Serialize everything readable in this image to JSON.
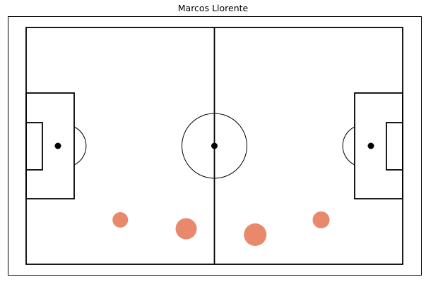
{
  "chart_data": {
    "type": "scatter",
    "title": "Marcos Llorente",
    "x_range": [
      0,
      120
    ],
    "y_range": [
      0,
      80
    ],
    "points": [
      {
        "x": 30,
        "y": 65,
        "size": 0.35
      },
      {
        "x": 51,
        "y": 68,
        "size": 0.55
      },
      {
        "x": 73,
        "y": 70,
        "size": 0.6
      },
      {
        "x": 94,
        "y": 65,
        "size": 0.4
      }
    ],
    "marker_color": "#E8896B",
    "line_color": "#000000",
    "grid": false
  }
}
